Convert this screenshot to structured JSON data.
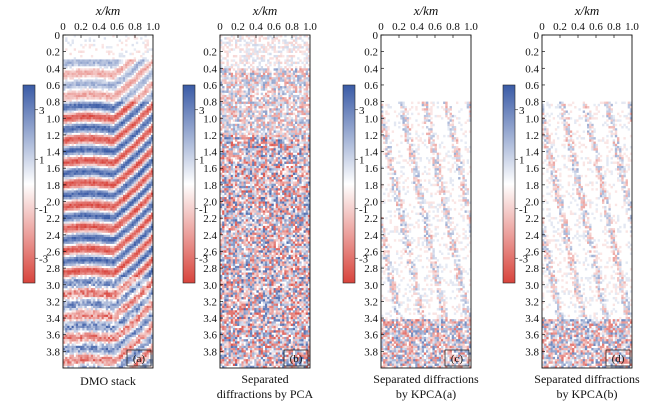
{
  "chart_data": [
    {
      "type": "heatmap",
      "title": "",
      "xlabel": "x/km",
      "ylabel": "",
      "xlim": [
        0,
        1.0
      ],
      "ylim": [
        0,
        4.0
      ],
      "x_ticks": [
        "0",
        "0.2",
        "0.4",
        "0.6",
        "0.8",
        "1.0"
      ],
      "y_ticks": [
        "0",
        "0.2",
        "0.4",
        "0.6",
        "0.8",
        "1.0",
        "1.2",
        "1.4",
        "1.6",
        "1.8",
        "2.0",
        "2.2",
        "2.4",
        "2.6",
        "2.8",
        "3.0",
        "3.2",
        "3.4",
        "3.6",
        "3.8"
      ],
      "colorbar": {
        "ticks": [
          "3",
          "1",
          "-1",
          "-3"
        ],
        "range": [
          -4,
          4
        ]
      },
      "panel_label": "(a)",
      "caption_lines": [
        "DMO stack"
      ],
      "pattern": "stack",
      "seed": 11
    },
    {
      "type": "heatmap",
      "title": "",
      "xlabel": "x/km",
      "ylabel": "",
      "xlim": [
        0,
        1.0
      ],
      "ylim": [
        0,
        4.0
      ],
      "x_ticks": [
        "0",
        "0.2",
        "0.4",
        "0.6",
        "0.8",
        "1.0"
      ],
      "y_ticks": [
        "0.2",
        "0.4",
        "0.6",
        "0.8",
        "1.0",
        "1.2",
        "1.4",
        "1.6",
        "1.8",
        "2.0",
        "2.2",
        "2.4",
        "2.6",
        "2.8",
        "3.0",
        "3.2",
        "3.4",
        "3.6",
        "3.8"
      ],
      "colorbar": {
        "ticks": [
          "3",
          "1",
          "-1",
          "-3"
        ],
        "range": [
          -4,
          4
        ]
      },
      "panel_label": "(b)",
      "caption_lines": [
        "Separated",
        "diffractions by PCA"
      ],
      "pattern": "pca",
      "seed": 23
    },
    {
      "type": "heatmap",
      "title": "",
      "xlabel": "x/km",
      "ylabel": "",
      "xlim": [
        0,
        1.0
      ],
      "ylim": [
        0,
        4.0
      ],
      "x_ticks": [
        "0",
        "0.2",
        "0.4",
        "0.6",
        "0.8",
        "1.0"
      ],
      "y_ticks": [
        "0",
        "0.2",
        "0.4",
        "0.6",
        "0.8",
        "1.0",
        "1.2",
        "1.4",
        "1.6",
        "1.8",
        "2.0",
        "2.2",
        "2.4",
        "2.6",
        "2.8",
        "3.0",
        "3.2",
        "3.4",
        "3.6",
        "3.8"
      ],
      "colorbar": {
        "ticks": [
          "3",
          "1",
          "-1",
          "-3"
        ],
        "range": [
          -4,
          4
        ]
      },
      "panel_label": "(c)",
      "caption_lines": [
        "Separated diffractions",
        "by KPCA(a)"
      ],
      "pattern": "kpca",
      "seed": 37
    },
    {
      "type": "heatmap",
      "title": "",
      "xlabel": "x/km",
      "ylabel": "",
      "xlim": [
        0,
        1.0
      ],
      "ylim": [
        0,
        4.0
      ],
      "x_ticks": [
        "0",
        "0.2",
        "0.4",
        "0.6",
        "0.8",
        "1.0"
      ],
      "y_ticks": [
        "0",
        "0.2",
        "0.4",
        "0.6",
        "0.8",
        "1.0",
        "1.2",
        "1.4",
        "1.6",
        "1.8",
        "2.0",
        "2.2",
        "2.4",
        "2.6",
        "2.8",
        "3.0",
        "3.2",
        "3.4",
        "3.6",
        "3.8"
      ],
      "colorbar": {
        "ticks": [
          "3",
          "1",
          "-1",
          "-3"
        ],
        "range": [
          -4,
          4
        ]
      },
      "panel_label": "(d)",
      "caption_lines": [
        "Separated diffractions",
        "by KPCA(b)"
      ],
      "pattern": "kpca",
      "seed": 53
    }
  ],
  "colors": {
    "positive": "#3a5ba6",
    "negative": "#d8443c",
    "neutral": "#ffffff"
  }
}
